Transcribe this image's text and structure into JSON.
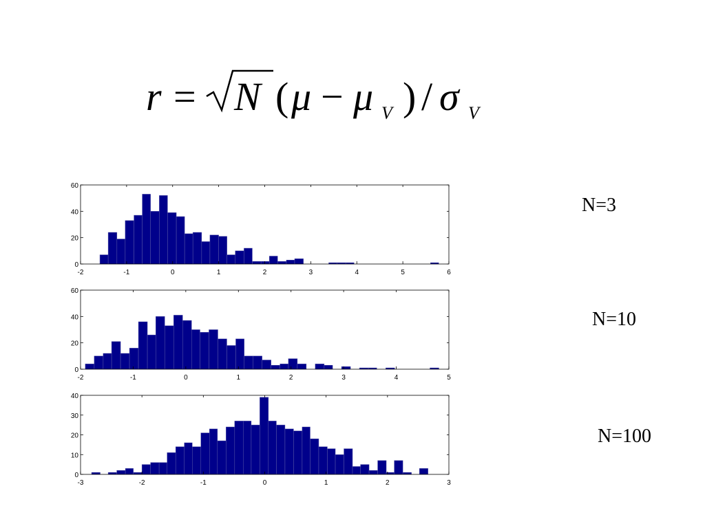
{
  "formula": [
    "r",
    "=",
    "N",
    "(",
    "μ",
    "−",
    "μ",
    "V",
    ")",
    "/",
    "σ",
    "V"
  ],
  "chart_data": [
    {
      "type": "histogram",
      "annotation": "N=3",
      "color": "#00008b",
      "bins": [
        -1.58,
        -1.4,
        -1.21,
        -1.03,
        -0.84,
        -0.66,
        -0.48,
        -0.29,
        -0.11,
        0.08,
        0.26,
        0.44,
        0.63,
        0.81,
        1.0,
        1.18,
        1.36,
        1.55,
        1.73,
        1.92,
        2.1,
        2.28,
        2.47,
        2.65,
        2.84,
        3.02,
        3.2,
        3.39,
        3.57,
        3.76,
        3.94,
        4.12,
        4.31,
        4.49,
        4.68,
        4.86,
        5.04,
        5.23,
        5.41,
        5.6,
        5.78
      ],
      "values": [
        7,
        24,
        19,
        33,
        37,
        53,
        40,
        52,
        39,
        36,
        23,
        24,
        17,
        22,
        21,
        7,
        10,
        12,
        2,
        2,
        6,
        2,
        3,
        4,
        0,
        0,
        0,
        1,
        1,
        1,
        0,
        0,
        0,
        0,
        0,
        0,
        0,
        0,
        0,
        1
      ],
      "xlim": [
        -2,
        6
      ],
      "xticks": [
        -2,
        -1,
        0,
        1,
        2,
        3,
        4,
        5,
        6
      ],
      "ylim": [
        0,
        60
      ],
      "yticks": [
        0,
        20,
        40,
        60
      ]
    },
    {
      "type": "histogram",
      "annotation": "N=10",
      "color": "#00008b",
      "bins": [
        -1.91,
        -1.74,
        -1.57,
        -1.41,
        -1.24,
        -1.07,
        -0.9,
        -0.73,
        -0.57,
        -0.4,
        -0.23,
        -0.06,
        0.11,
        0.27,
        0.44,
        0.61,
        0.78,
        0.95,
        1.11,
        1.28,
        1.45,
        1.62,
        1.79,
        1.95,
        2.12,
        2.29,
        2.46,
        2.63,
        2.79,
        2.96,
        3.13,
        3.3,
        3.47,
        3.63,
        3.8,
        3.97,
        4.14,
        4.31,
        4.47,
        4.64,
        4.81
      ],
      "values": [
        4,
        10,
        12,
        21,
        12,
        16,
        36,
        26,
        40,
        33,
        41,
        37,
        30,
        28,
        30,
        23,
        18,
        23,
        10,
        10,
        7,
        3,
        4,
        8,
        4,
        0,
        4,
        3,
        0,
        2,
        0,
        1,
        1,
        0,
        1,
        0,
        0,
        0,
        0,
        1
      ],
      "xlim": [
        -2,
        5
      ],
      "xticks": [
        -2,
        -1,
        0,
        1,
        2,
        3,
        4,
        5
      ],
      "ylim": [
        0,
        60
      ],
      "yticks": [
        0,
        20,
        40,
        60
      ]
    },
    {
      "type": "histogram",
      "annotation": "N=100",
      "color": "#00008b",
      "bins": [
        -2.82,
        -2.68,
        -2.55,
        -2.41,
        -2.27,
        -2.14,
        -2.0,
        -1.86,
        -1.72,
        -1.59,
        -1.45,
        -1.31,
        -1.18,
        -1.04,
        -0.9,
        -0.77,
        -0.63,
        -0.49,
        -0.35,
        -0.22,
        -0.08,
        0.06,
        0.19,
        0.33,
        0.47,
        0.61,
        0.74,
        0.88,
        1.02,
        1.15,
        1.29,
        1.43,
        1.56,
        1.7,
        1.84,
        1.98,
        2.11,
        2.25,
        2.39,
        2.52,
        2.66
      ],
      "values": [
        1,
        0,
        1,
        2,
        3,
        1,
        5,
        6,
        6,
        11,
        14,
        16,
        14,
        21,
        23,
        17,
        24,
        27,
        27,
        25,
        39,
        27,
        25,
        23,
        22,
        24,
        18,
        14,
        13,
        10,
        13,
        4,
        5,
        2,
        7,
        1,
        7,
        1,
        0,
        3
      ],
      "xlim": [
        -3,
        3
      ],
      "xticks": [
        -3,
        -2,
        -1,
        0,
        1,
        2,
        3
      ],
      "ylim": [
        0,
        40
      ],
      "yticks": [
        0,
        10,
        20,
        30,
        40
      ]
    }
  ]
}
